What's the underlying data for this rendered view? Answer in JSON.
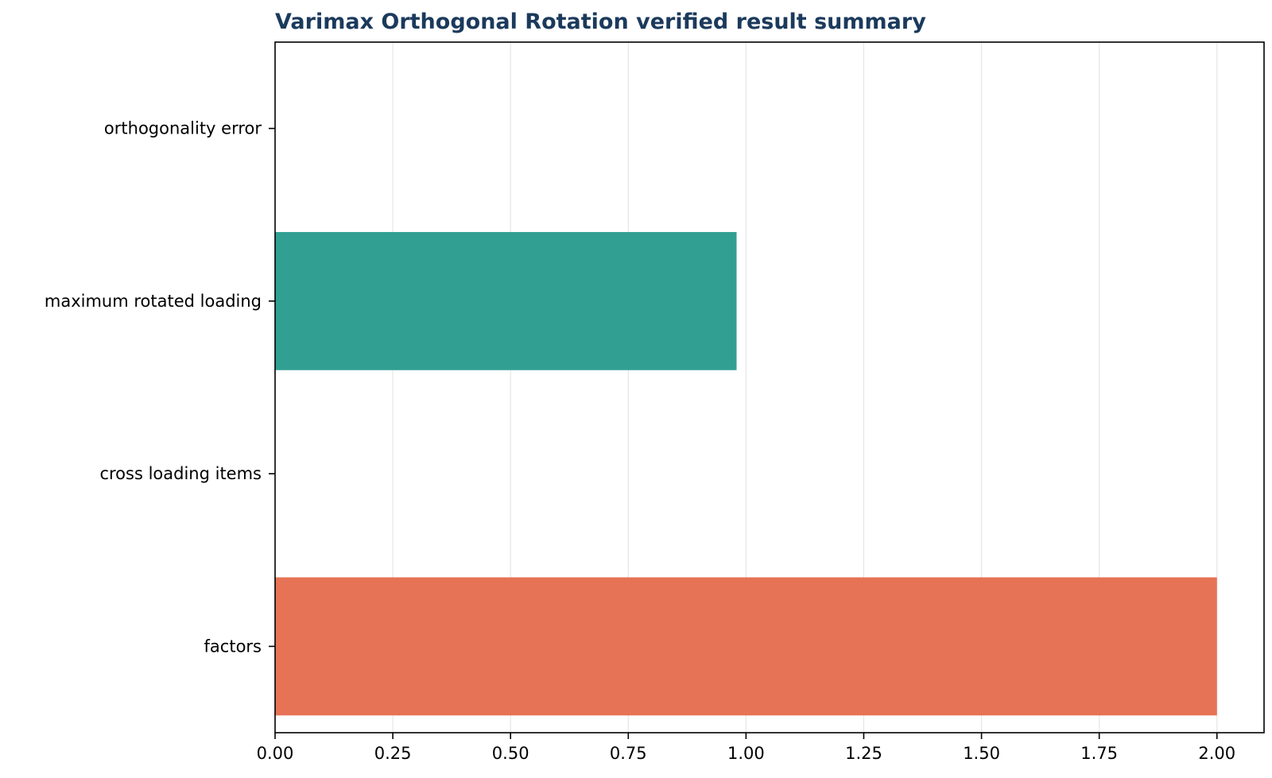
{
  "chart_data": {
    "type": "bar",
    "orientation": "horizontal",
    "title": "Varimax Orthogonal Rotation verified result summary",
    "xlabel": "",
    "ylabel": "",
    "categories": [
      "factors",
      "cross loading items",
      "maximum rotated loading",
      "orthogonality error"
    ],
    "values": [
      2.0,
      0.0,
      0.98,
      0.0
    ],
    "colors": [
      "#e56e50",
      "#e56e50",
      "#2a9d8f",
      "#2a9d8f"
    ],
    "xlim": [
      0,
      2.1
    ],
    "xticks": [
      0.0,
      0.25,
      0.5,
      0.75,
      1.0,
      1.25,
      1.5,
      1.75,
      2.0
    ],
    "xtick_labels": [
      "0.00",
      "0.25",
      "0.50",
      "0.75",
      "1.00",
      "1.25",
      "1.50",
      "1.75",
      "2.00"
    ],
    "grid": "x",
    "legend": "none"
  }
}
